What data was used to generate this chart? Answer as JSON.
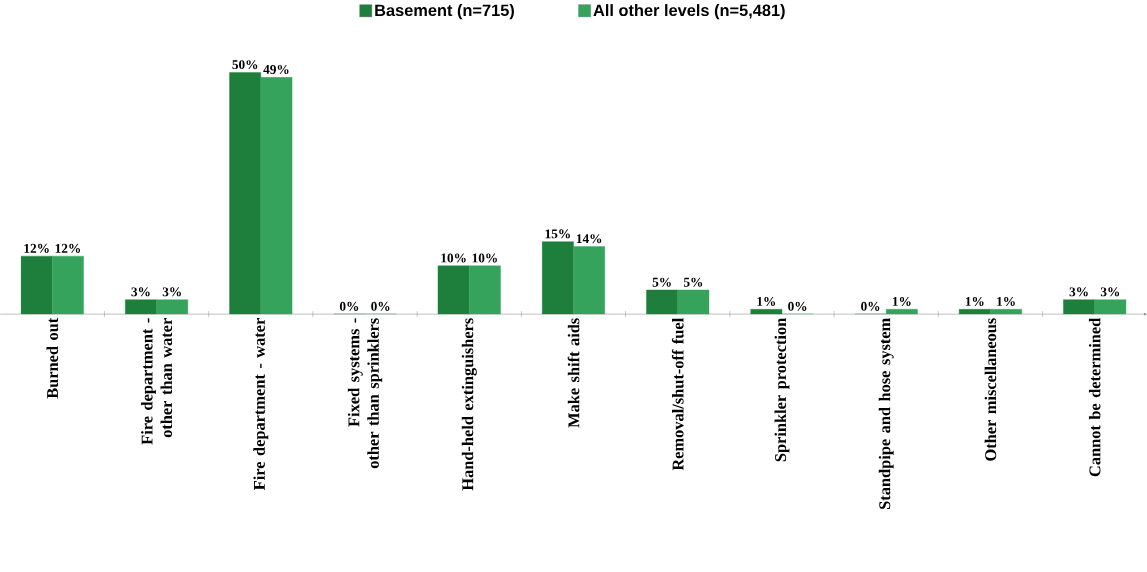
{
  "chart_data": {
    "type": "bar",
    "categories": [
      "Burned out",
      "Fire department - other than water",
      "Fire department - water",
      "Fixed systems - other than sprinklers",
      "Hand-held extinguishers",
      "Make shift aids",
      "Removal/shut-off fuel",
      "Sprinkler protection",
      "Standpipe and hose system",
      "Other miscellaneous",
      "Cannot be determined"
    ],
    "series": [
      {
        "name": "Basement (n=715)",
        "color": "#1e7f3c",
        "values": [
          12,
          3,
          50,
          0,
          10,
          15,
          5,
          1,
          0,
          1,
          3
        ],
        "value_labels": [
          "12%",
          "3%",
          "50%",
          "0%",
          "10%",
          "15%",
          "5%",
          "1%",
          "0%",
          "1%",
          "3%"
        ]
      },
      {
        "name": "All other levels (n=5,481)",
        "color": "#36a35c",
        "values": [
          12,
          3,
          49,
          0,
          10,
          14,
          5,
          0,
          1,
          1,
          3
        ],
        "value_labels": [
          "12%",
          "3%",
          "49%",
          "0%",
          "10%",
          "14%",
          "5%",
          "0%",
          "1%",
          "1%",
          "3%"
        ]
      }
    ],
    "legend": "top"
  }
}
